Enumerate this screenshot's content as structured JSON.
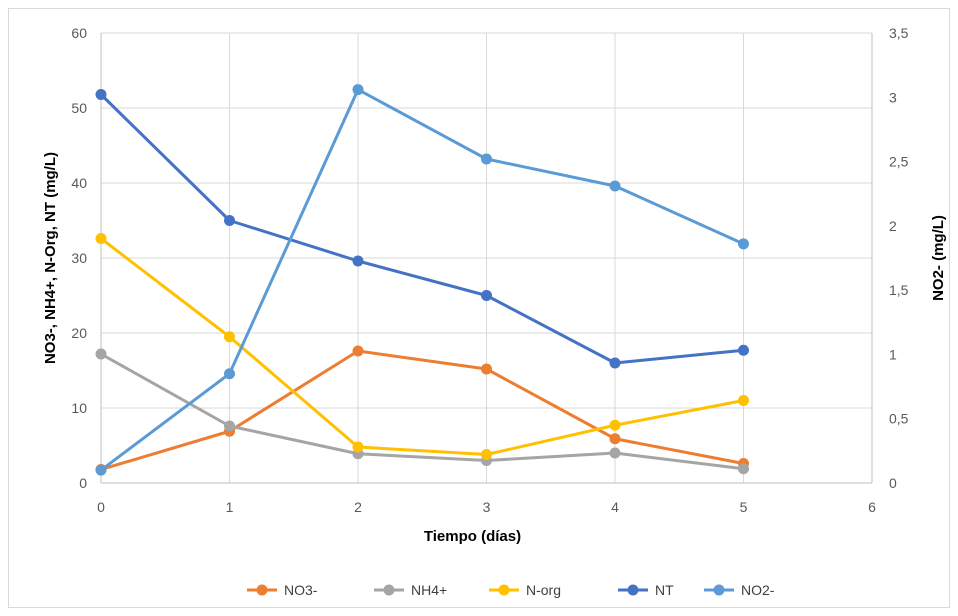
{
  "chart_data": {
    "type": "line",
    "title": "",
    "xlabel": "Tiempo (días)",
    "ylabel": "NO3-, NH4+, N-Org, NT (mg/L)",
    "ylabel_right": "NO2- (mg/L)",
    "xlim": [
      0,
      6
    ],
    "ylim": [
      0,
      60
    ],
    "ylim_right": [
      0,
      3.5
    ],
    "x_ticks": [
      "0",
      "1",
      "2",
      "3",
      "4",
      "5",
      "6"
    ],
    "y_ticks": [
      "0",
      "10",
      "20",
      "30",
      "40",
      "50",
      "60"
    ],
    "y_ticks_right": [
      "0",
      "0,5",
      "1",
      "1,5",
      "2",
      "2,5",
      "3",
      "3,5"
    ],
    "grid": true,
    "legend_position": "bottom",
    "series": [
      {
        "name": "NO3-",
        "axis": "left",
        "color": "#ED7D31",
        "x": [
          0,
          1,
          2,
          3,
          4,
          5
        ],
        "values": [
          1.8,
          6.9,
          17.6,
          15.2,
          5.9,
          2.6
        ]
      },
      {
        "name": "NH4+",
        "axis": "left",
        "color": "#A5A5A5",
        "x": [
          0,
          1,
          2,
          3,
          4,
          5
        ],
        "values": [
          17.2,
          7.6,
          3.9,
          3.0,
          4.0,
          1.9
        ]
      },
      {
        "name": "N-org",
        "axis": "left",
        "color": "#FFC000",
        "x": [
          0,
          1,
          2,
          3,
          4,
          5
        ],
        "values": [
          32.6,
          19.5,
          4.8,
          3.8,
          7.7,
          11.0
        ]
      },
      {
        "name": "NT",
        "axis": "left",
        "color": "#4472C4",
        "x": [
          0,
          1,
          2,
          3,
          4,
          5
        ],
        "values": [
          51.8,
          35.0,
          29.6,
          25.0,
          16.0,
          17.7
        ]
      },
      {
        "name": "NO2-",
        "axis": "right",
        "color": "#5B9BD5",
        "x": [
          0,
          1,
          2,
          3,
          4,
          5
        ],
        "values": [
          0.1,
          0.85,
          3.06,
          2.52,
          2.31,
          1.86
        ]
      }
    ]
  }
}
